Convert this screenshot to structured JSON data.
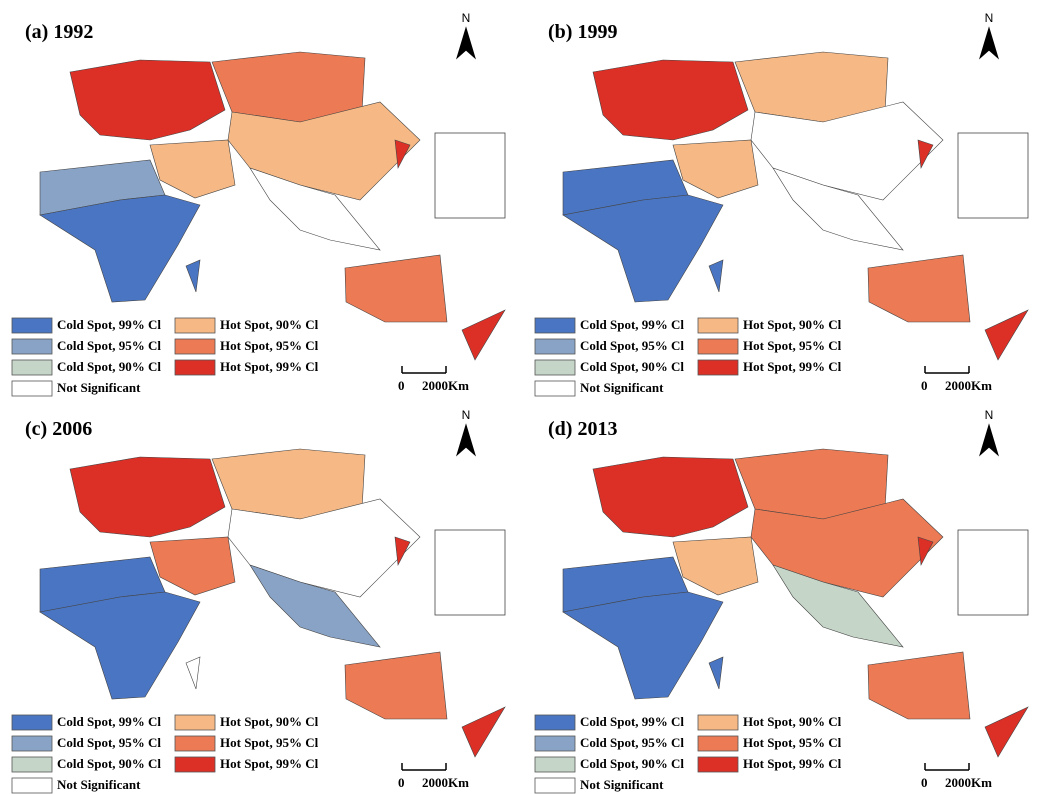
{
  "legend_colors": [
    "#4a75c2",
    "#89a3c6",
    "#c5d6c8",
    "#ffffff",
    "#f6b985",
    "#ec7a54",
    "#dc3027"
  ],
  "panels": [
    {
      "title": "(a) 1992",
      "north": "N",
      "scale": [
        "0",
        "2000Km"
      ],
      "legend": [
        "Cold Spot, 99% Cl",
        "Cold Spot, 95% Cl",
        "Cold Spot, 90% Cl",
        "Not Significant",
        "Hot Spot, 90% Cl",
        "Hot Spot, 95% Cl",
        "Hot Spot, 99% Cl"
      ]
    },
    {
      "title": "(b) 1999",
      "north": "N",
      "scale": [
        "0",
        "2000Km"
      ],
      "legend": [
        "Cold Spot, 99% Cl",
        "Cold Spot, 95% Cl",
        "Cold Spot, 90% Cl",
        "Not Significant",
        "Hot Spot, 90% Cl",
        "Hot Spot, 95% Cl",
        "Hot Spot, 99% Cl"
      ]
    },
    {
      "title": "(c) 2006",
      "north": "N",
      "scale": [
        "0",
        "2000Km"
      ],
      "legend": [
        "Cold Spot, 99% Cl",
        "Cold Spot, 95% Cl",
        "Cold Spot, 90% Cl",
        "Not Significant",
        "Hot Spot, 90% Cl",
        "Hot Spot, 95% Cl",
        "Hot Spot, 99% Cl"
      ]
    },
    {
      "title": "(d) 2013",
      "north": "N",
      "scale": [
        "0",
        "2000Km"
      ],
      "legend": [
        "Cold Spot, 99% Cl",
        "Cold Spot, 95% Cl",
        "Cold Spot, 90% Cl",
        "Not Significant",
        "Hot Spot, 90% Cl",
        "Hot Spot, 95% Cl",
        "Hot Spot, 99% Cl"
      ]
    }
  ]
}
